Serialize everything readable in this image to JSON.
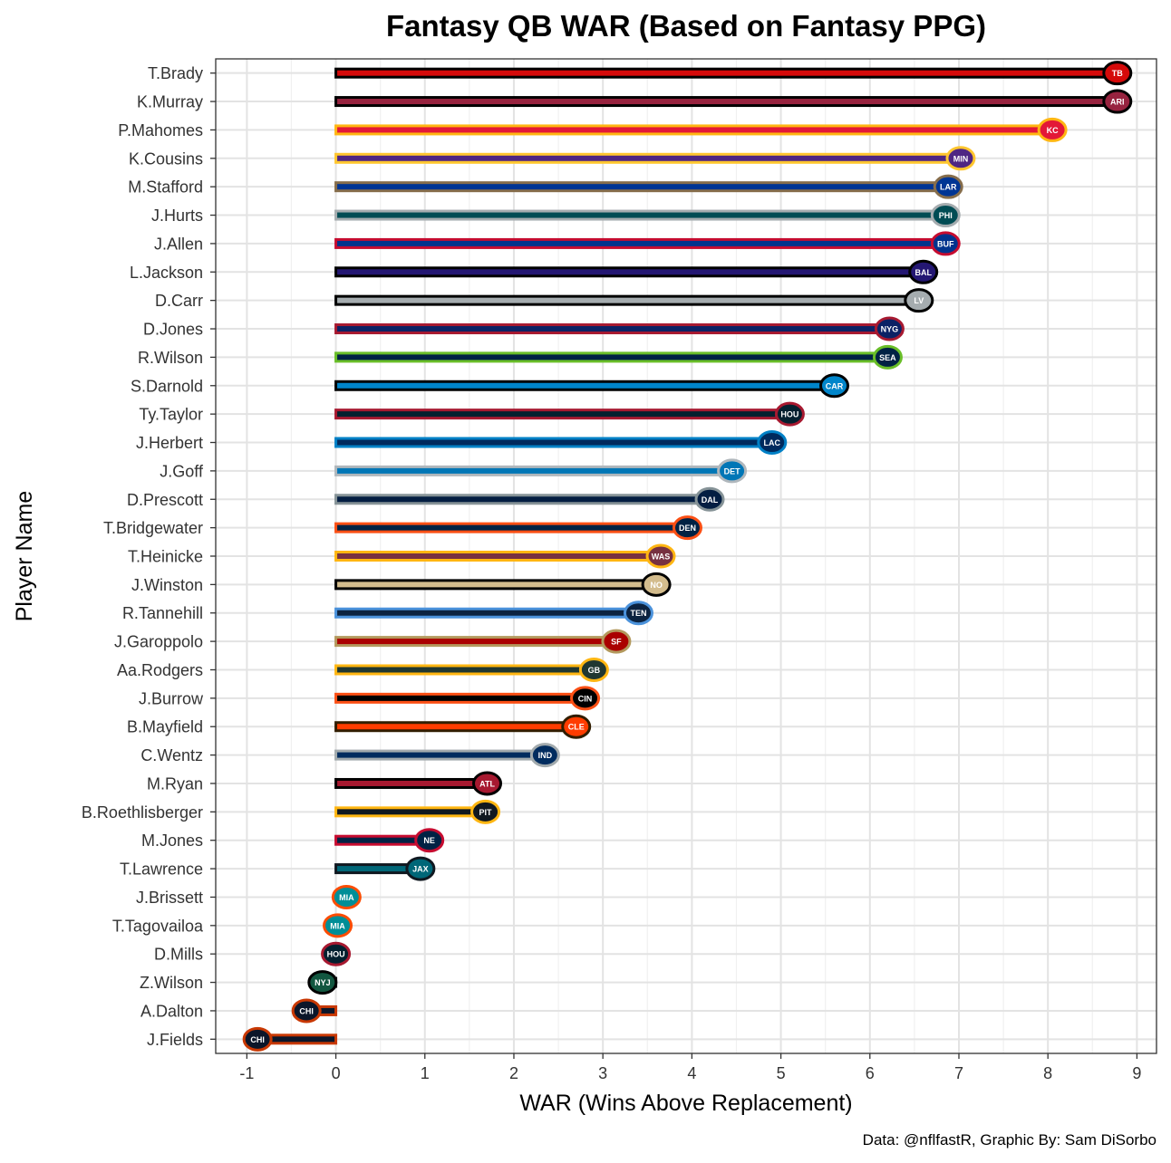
{
  "chart_data": {
    "type": "bar",
    "orientation": "horizontal",
    "title": "Fantasy QB WAR (Based on Fantasy PPG)",
    "xlabel": "WAR (Wins Above Replacement)",
    "ylabel": "Player Name",
    "caption": "Data: @nflfastR, Graphic By: Sam DiSorbo",
    "xlim": [
      -1.35,
      9.22
    ],
    "x_ticks": [
      -1,
      0,
      1,
      2,
      3,
      4,
      5,
      6,
      7,
      8,
      9
    ],
    "grid": true,
    "bars": [
      {
        "player": "T.Brady",
        "team": "TB",
        "value": 8.78,
        "outline": "#000000",
        "fill": "#D50A0A"
      },
      {
        "player": "K.Murray",
        "team": "ARI",
        "value": 8.78,
        "outline": "#000000",
        "fill": "#97233F"
      },
      {
        "player": "P.Mahomes",
        "team": "KC",
        "value": 8.05,
        "outline": "#FFB612",
        "fill": "#E31837"
      },
      {
        "player": "K.Cousins",
        "team": "MIN",
        "value": 7.02,
        "outline": "#FFC62F",
        "fill": "#4F2683"
      },
      {
        "player": "M.Stafford",
        "team": "LAR",
        "value": 6.88,
        "outline": "#866D4B",
        "fill": "#003594"
      },
      {
        "player": "J.Hurts",
        "team": "PHI",
        "value": 6.85,
        "outline": "#A5ACAF",
        "fill": "#004C54"
      },
      {
        "player": "J.Allen",
        "team": "BUF",
        "value": 6.85,
        "outline": "#C60C30",
        "fill": "#00338D"
      },
      {
        "player": "L.Jackson",
        "team": "BAL",
        "value": 6.6,
        "outline": "#000000",
        "fill": "#241773"
      },
      {
        "player": "D.Carr",
        "team": "LV",
        "value": 6.55,
        "outline": "#000000",
        "fill": "#A5ACAF"
      },
      {
        "player": "D.Jones",
        "team": "NYG",
        "value": 6.22,
        "outline": "#A71930",
        "fill": "#0B2265"
      },
      {
        "player": "R.Wilson",
        "team": "SEA",
        "value": 6.2,
        "outline": "#69BE28",
        "fill": "#002244"
      },
      {
        "player": "S.Darnold",
        "team": "CAR",
        "value": 5.6,
        "outline": "#000000",
        "fill": "#0085CA"
      },
      {
        "player": "Ty.Taylor",
        "team": "HOU",
        "value": 5.1,
        "outline": "#A71930",
        "fill": "#03202F"
      },
      {
        "player": "J.Herbert",
        "team": "LAC",
        "value": 4.9,
        "outline": "#0080C6",
        "fill": "#002A5E"
      },
      {
        "player": "J.Goff",
        "team": "DET",
        "value": 4.45,
        "outline": "#B0B7BC",
        "fill": "#0076B6"
      },
      {
        "player": "D.Prescott",
        "team": "DAL",
        "value": 4.2,
        "outline": "#869397",
        "fill": "#041E42"
      },
      {
        "player": "T.Bridgewater",
        "team": "DEN",
        "value": 3.95,
        "outline": "#FB4F14",
        "fill": "#002244"
      },
      {
        "player": "T.Heinicke",
        "team": "WAS",
        "value": 3.65,
        "outline": "#FFB612",
        "fill": "#773141"
      },
      {
        "player": "J.Winston",
        "team": "NO",
        "value": 3.6,
        "outline": "#000000",
        "fill": "#D3BC8D"
      },
      {
        "player": "R.Tannehill",
        "team": "TEN",
        "value": 3.4,
        "outline": "#4B92DB",
        "fill": "#0C2340"
      },
      {
        "player": "J.Garoppolo",
        "team": "SF",
        "value": 3.15,
        "outline": "#B3995D",
        "fill": "#AA0000"
      },
      {
        "player": "Aa.Rodgers",
        "team": "GB",
        "value": 2.9,
        "outline": "#FFB612",
        "fill": "#203731"
      },
      {
        "player": "J.Burrow",
        "team": "CIN",
        "value": 2.8,
        "outline": "#FB4F14",
        "fill": "#000000"
      },
      {
        "player": "B.Mayfield",
        "team": "CLE",
        "value": 2.7,
        "outline": "#311D00",
        "fill": "#FF3C00"
      },
      {
        "player": "C.Wentz",
        "team": "IND",
        "value": 2.35,
        "outline": "#A2AAAD",
        "fill": "#002C5F"
      },
      {
        "player": "M.Ryan",
        "team": "ATL",
        "value": 1.7,
        "outline": "#000000",
        "fill": "#A71930"
      },
      {
        "player": "B.Roethlisberger",
        "team": "PIT",
        "value": 1.68,
        "outline": "#FFB612",
        "fill": "#101820"
      },
      {
        "player": "M.Jones",
        "team": "NE",
        "value": 1.05,
        "outline": "#C60C30",
        "fill": "#002244"
      },
      {
        "player": "T.Lawrence",
        "team": "JAX",
        "value": 0.95,
        "outline": "#101820",
        "fill": "#006778"
      },
      {
        "player": "J.Brissett",
        "team": "MIA",
        "value": 0.12,
        "outline": "#FC4C02",
        "fill": "#008E97"
      },
      {
        "player": "T.Tagovailoa",
        "team": "MIA",
        "value": 0.02,
        "outline": "#FC4C02",
        "fill": "#008E97"
      },
      {
        "player": "D.Mills",
        "team": "HOU",
        "value": 0.0,
        "outline": "#A71930",
        "fill": "#03202F"
      },
      {
        "player": "Z.Wilson",
        "team": "NYJ",
        "value": -0.15,
        "outline": "#000000",
        "fill": "#125740"
      },
      {
        "player": "A.Dalton",
        "team": "CHI",
        "value": -0.33,
        "outline": "#C83803",
        "fill": "#0B162A"
      },
      {
        "player": "J.Fields",
        "team": "CHI",
        "value": -0.88,
        "outline": "#C83803",
        "fill": "#0B162A"
      }
    ]
  }
}
